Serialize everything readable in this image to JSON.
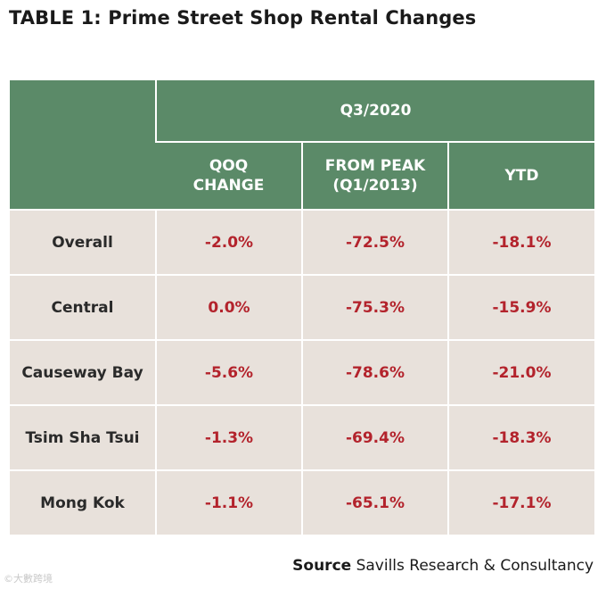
{
  "title": "TABLE 1: Prime Street Shop Rental Changes",
  "header": {
    "period": "Q3/2020",
    "columns": [
      {
        "line1": "QOQ",
        "line2": "CHANGE"
      },
      {
        "line1": "FROM PEAK",
        "line2": "(Q1/2013)"
      },
      {
        "line1": "YTD",
        "line2": ""
      }
    ]
  },
  "rows": [
    {
      "region": "Overall",
      "qoq": "-2.0%",
      "from_peak": "-72.5%",
      "ytd": "-18.1%"
    },
    {
      "region": "Central",
      "qoq": "0.0%",
      "from_peak": "-75.3%",
      "ytd": "-15.9%"
    },
    {
      "region": "Causeway Bay",
      "qoq": "-5.6%",
      "from_peak": "-78.6%",
      "ytd": "-21.0%"
    },
    {
      "region": "Tsim Sha Tsui",
      "qoq": "-1.3%",
      "from_peak": "-69.4%",
      "ytd": "-18.3%"
    },
    {
      "region": "Mong Kok",
      "qoq": "-1.1%",
      "from_peak": "-65.1%",
      "ytd": "-17.1%"
    }
  ],
  "source": {
    "label": "Source",
    "text": "Savills Research & Consultancy"
  },
  "watermark": "©大數跨境",
  "colors": {
    "header_bg": "#5b8a68",
    "cell_bg": "#e8e1db",
    "value_text": "#b3232c"
  }
}
